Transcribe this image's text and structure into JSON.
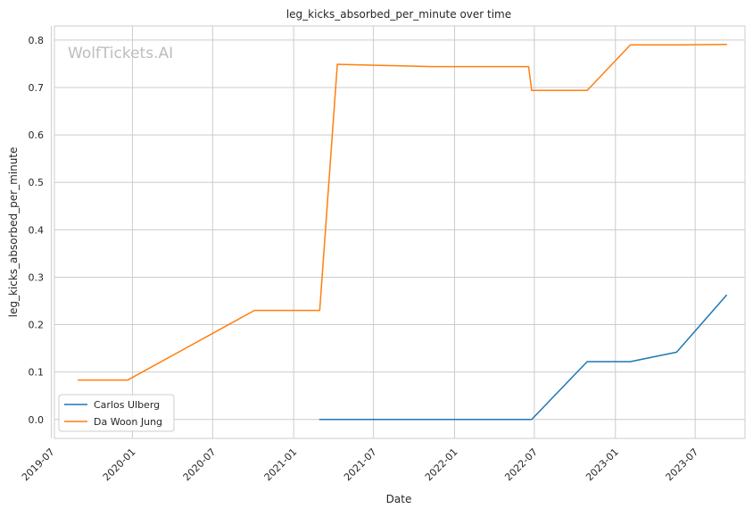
{
  "chart_data": {
    "type": "line",
    "title": "leg_kicks_absorbed_per_minute over time",
    "xlabel": "Date",
    "ylabel": "leg_kicks_absorbed_per_minute",
    "watermark": "WolfTickets.AI",
    "xlim": [
      "2019-07-08",
      "2023-10-22"
    ],
    "ylim": [
      -0.04,
      0.83
    ],
    "x_ticks": [
      "2019-07",
      "2020-01",
      "2020-07",
      "2021-01",
      "2021-07",
      "2022-01",
      "2022-07",
      "2023-01",
      "2023-07"
    ],
    "y_ticks": [
      "0.0",
      "0.1",
      "0.2",
      "0.3",
      "0.4",
      "0.5",
      "0.6",
      "0.7",
      "0.8"
    ],
    "y_tick_values": [
      0,
      0.1,
      0.2,
      0.3,
      0.4,
      0.5,
      0.6,
      0.7,
      0.8
    ],
    "grid": true,
    "legend_position": "lower-left",
    "series": [
      {
        "name": "Carlos Ulberg",
        "color": "#1f77b4",
        "x": [
          "2021-03-01",
          "2022-06-25",
          "2022-10-29",
          "2023-02-04",
          "2023-05-20",
          "2023-09-10"
        ],
        "y": [
          0.0,
          0.0,
          0.122,
          0.122,
          0.142,
          0.262
        ]
      },
      {
        "name": "Da Woon Jung",
        "color": "#ff7f0e",
        "x": [
          "2019-08-31",
          "2019-12-21",
          "2020-10-04",
          "2021-03-01",
          "2021-04-10",
          "2021-11-13",
          "2022-06-18",
          "2022-06-25",
          "2022-10-29",
          "2023-02-04",
          "2023-05-20",
          "2023-09-10"
        ],
        "y": [
          0.083,
          0.083,
          0.23,
          0.23,
          0.749,
          0.744,
          0.744,
          0.694,
          0.694,
          0.79,
          0.79,
          0.791
        ]
      }
    ]
  }
}
